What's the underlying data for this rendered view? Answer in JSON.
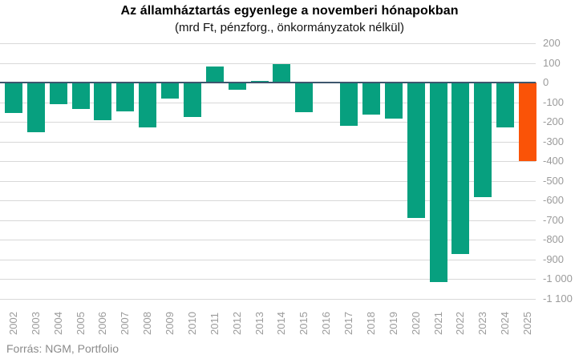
{
  "chart_data": {
    "type": "bar",
    "title": "Az államháztartás egyenlege a novemberi hónapokban",
    "subtitle": "(mrd Ft, pénzforg., önkormányzatok nélkül)",
    "categories": [
      "2002",
      "2003",
      "2004",
      "2005",
      "2006",
      "2007",
      "2008",
      "2009",
      "2010",
      "2011",
      "2012",
      "2013",
      "2014",
      "2015",
      "2016",
      "2017",
      "2018",
      "2019",
      "2020",
      "2021",
      "2022",
      "2023",
      "2024",
      "2025"
    ],
    "values": [
      -155,
      -255,
      -110,
      -135,
      -190,
      -145,
      -230,
      -80,
      -175,
      80,
      -35,
      10,
      95,
      -150,
      0,
      -220,
      -165,
      -185,
      -690,
      -1015,
      -875,
      -585,
      -230,
      -400
    ],
    "highlight_category": "2025",
    "bar_color": "#07a07f",
    "highlight_color": "#fa5307",
    "zero_line_color": "#3d566e",
    "grid_color": "#d8d8d8",
    "ylim": [
      -1100,
      200
    ],
    "ytick_step": 100,
    "ytick_labels": [
      "200",
      "100",
      "0",
      "-100",
      "-200",
      "-300",
      "-400",
      "-500",
      "-600",
      "-700",
      "-800",
      "-900",
      "-1 000",
      "-1 100"
    ],
    "grid": true,
    "legend": false,
    "xlabel": "",
    "ylabel": ""
  },
  "footer": {
    "source": "Forrás: NGM, Portfolio"
  }
}
